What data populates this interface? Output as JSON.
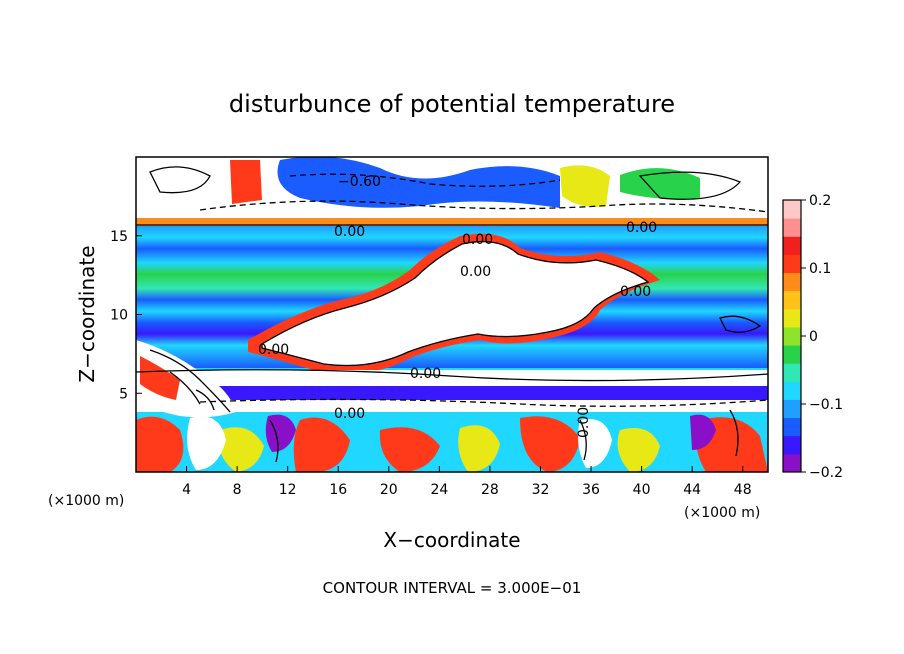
{
  "chart_data": {
    "type": "heatmap",
    "title": "disturbunce of potential temperature",
    "xlabel": "X−coordinate",
    "ylabel": "Z−coordinate",
    "x_unit": "(×1000 m)",
    "z_unit": "(×1000 m)",
    "xlim": [
      0,
      50
    ],
    "ylim": [
      0,
      20
    ],
    "x_ticks": [
      4,
      8,
      12,
      16,
      20,
      24,
      28,
      32,
      36,
      40,
      44,
      48
    ],
    "y_ticks": [
      5,
      10,
      15
    ],
    "colorbar": {
      "range": [
        -0.2,
        0.2
      ],
      "tick_values": [
        0.2,
        0.1,
        0,
        -0.1,
        -0.2
      ],
      "tick_labels": [
        "0.2",
        "0.1",
        "0",
        "−0.1",
        "−0.2"
      ],
      "colors": [
        "#8a0fc9",
        "#3a18ff",
        "#1a5cff",
        "#1f9fff",
        "#1fd7ff",
        "#31e8b5",
        "#28d24a",
        "#8fe32a",
        "#e8e816",
        "#ffc21a",
        "#ff8c1a",
        "#ff3a1a",
        "#f0201f",
        "#ff9090",
        "#ffc8c8"
      ]
    },
    "contour_labels": [
      "−0.60",
      "0.00",
      "0.00",
      "0.00",
      "0.00",
      "0.00",
      "0.00",
      "0.00",
      "0.00",
      "0.00"
    ],
    "footer": "CONTOUR INTERVAL = 3.000E−01"
  }
}
